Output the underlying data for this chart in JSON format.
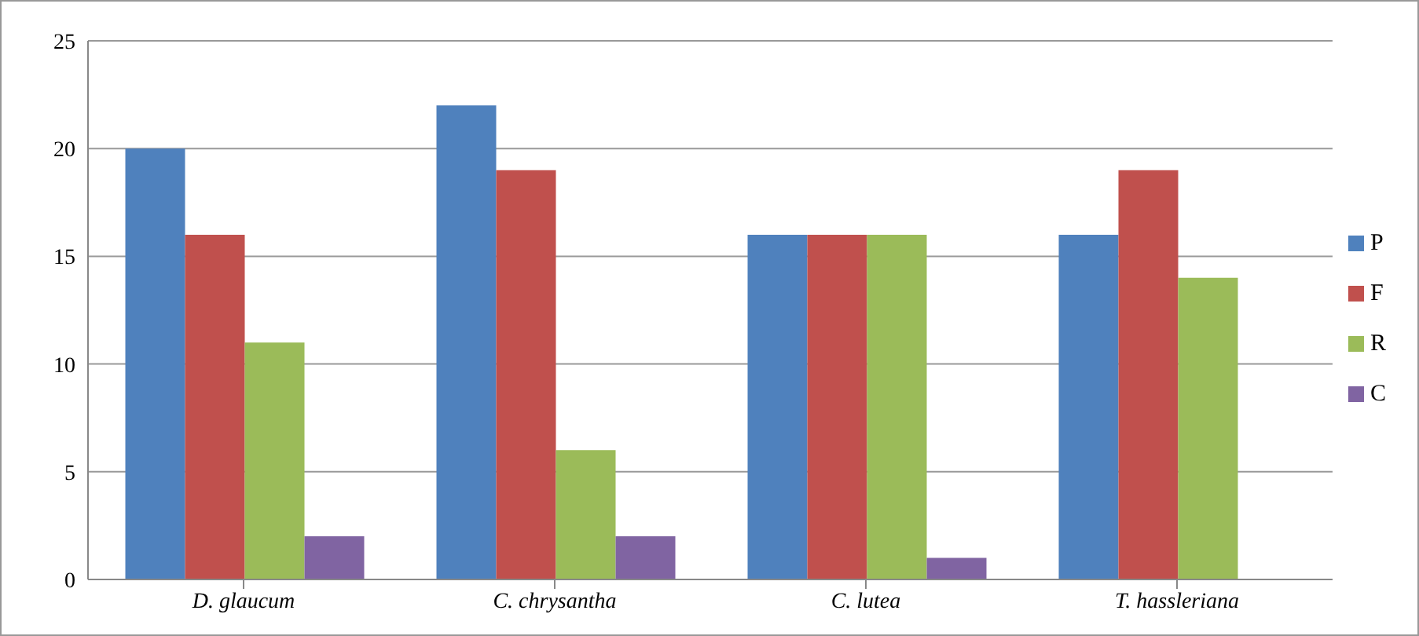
{
  "chart_data": {
    "type": "bar",
    "categories": [
      "D. glaucum",
      "C. chrysantha",
      "C. lutea",
      "T. hassleriana"
    ],
    "series": [
      {
        "name": "P",
        "color": "#4f81bd",
        "values": [
          20,
          22,
          16,
          16
        ]
      },
      {
        "name": "F",
        "color": "#c0504d",
        "values": [
          16,
          19,
          16,
          19
        ]
      },
      {
        "name": "R",
        "color": "#9bbb59",
        "values": [
          11,
          6,
          16,
          14
        ]
      },
      {
        "name": "C",
        "color": "#8064a2",
        "values": [
          2,
          2,
          1,
          0
        ]
      }
    ],
    "ylim": [
      0,
      25
    ],
    "yticks": [
      0,
      5,
      10,
      15,
      20,
      25
    ],
    "grid": "y",
    "legend": "right"
  }
}
